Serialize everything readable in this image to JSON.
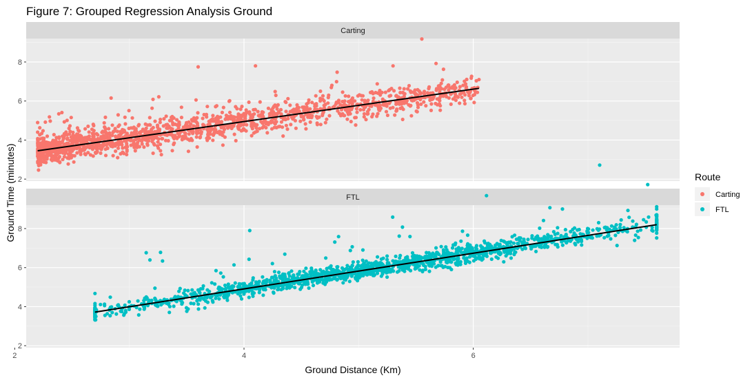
{
  "chart_data": {
    "type": "scatter",
    "title": "Figure 7: Grouped Regression Analysis Ground",
    "xlabel": "Ground Distance (Km)",
    "ylabel": "Ground Time (minutes)",
    "xlim": [
      2.1,
      7.8
    ],
    "ylim": [
      1.9,
      9.2
    ],
    "x_ticks": [
      "2",
      "4",
      "6"
    ],
    "y_ticks": [
      "2",
      "4",
      "6",
      "8"
    ],
    "grid": true,
    "legend": {
      "title": "Route",
      "position": "right",
      "entries": [
        "Carting",
        "FTL"
      ]
    },
    "panels": [
      {
        "strip": "Carting",
        "series": "Carting",
        "color": "#F8766D",
        "x_range": [
          2.2,
          6.05
        ],
        "regression": {
          "x": [
            2.2,
            6.05
          ],
          "y": [
            3.45,
            6.65
          ]
        },
        "points_sample": [
          {
            "x": 2.2,
            "y": 3.4
          },
          {
            "x": 2.5,
            "y": 3.7
          },
          {
            "x": 3.0,
            "y": 4.2
          },
          {
            "x": 3.5,
            "y": 4.6
          },
          {
            "x": 4.0,
            "y": 5.0
          },
          {
            "x": 4.5,
            "y": 5.2
          },
          {
            "x": 5.0,
            "y": 5.8
          },
          {
            "x": 5.5,
            "y": 6.1
          },
          {
            "x": 6.05,
            "y": 7.1
          },
          {
            "x": 3.6,
            "y": 7.75
          },
          {
            "x": 4.1,
            "y": 7.8
          },
          {
            "x": 5.3,
            "y": 7.8
          }
        ]
      },
      {
        "strip": "FTL",
        "series": "FTL",
        "color": "#00BFC4",
        "x_range": [
          2.7,
          7.6
        ],
        "regression": {
          "x": [
            2.7,
            7.6
          ],
          "y": [
            3.72,
            8.2
          ]
        },
        "points_sample": [
          {
            "x": 2.7,
            "y": 3.8
          },
          {
            "x": 3.0,
            "y": 4.0
          },
          {
            "x": 3.5,
            "y": 4.5
          },
          {
            "x": 4.0,
            "y": 4.9
          },
          {
            "x": 4.5,
            "y": 5.3
          },
          {
            "x": 5.0,
            "y": 5.7
          },
          {
            "x": 5.5,
            "y": 6.2
          },
          {
            "x": 6.0,
            "y": 6.6
          },
          {
            "x": 6.5,
            "y": 7.1
          },
          {
            "x": 7.0,
            "y": 7.6
          },
          {
            "x": 7.6,
            "y": 8.7
          },
          {
            "x": 4.05,
            "y": 7.9
          }
        ]
      }
    ]
  }
}
